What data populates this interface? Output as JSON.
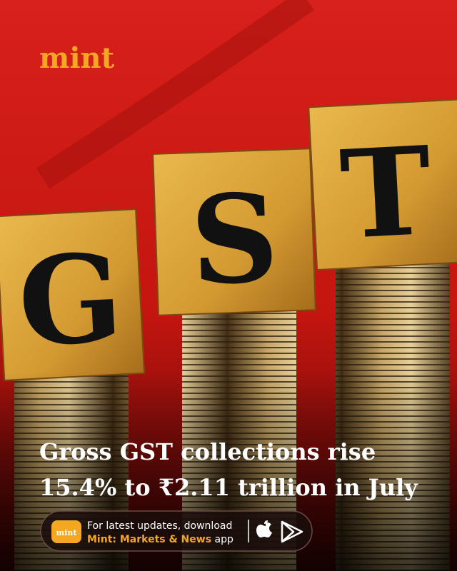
{
  "brand": "mint",
  "blocks": [
    "G",
    "S",
    "T"
  ],
  "headline": [
    "Gross GST collections rise",
    "15.4% to ₹2.11 trillion in July"
  ],
  "promo": {
    "badge": "mint",
    "line1": "For latest updates, download",
    "line2_bold": "Mint: Markets & News",
    "line2_rest": "app"
  }
}
